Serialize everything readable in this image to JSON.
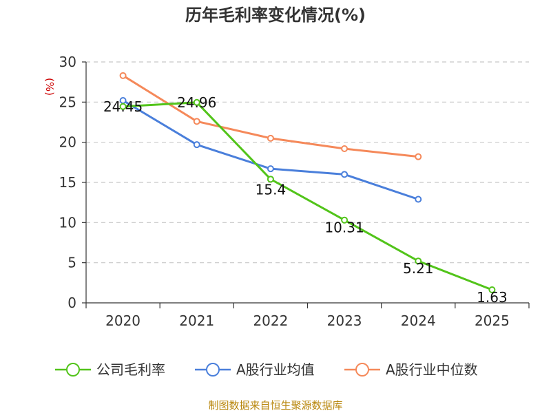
{
  "chart_data": {
    "type": "line",
    "title": "历年毛利率变化情况(%)",
    "ylabel": "(%)",
    "categories": [
      "2020",
      "2021",
      "2022",
      "2023",
      "2024",
      "2025"
    ],
    "ylim": [
      0,
      30
    ],
    "yticks": [
      0,
      5,
      10,
      15,
      20,
      25,
      30
    ],
    "grid": true,
    "legend_position": "bottom",
    "series": [
      {
        "name": "公司毛利率",
        "color": "#52c41a",
        "values": [
          24.45,
          24.96,
          15.4,
          10.31,
          5.21,
          1.63
        ],
        "data_labels": [
          "24.45",
          "24.96",
          "15.4",
          "10.31",
          "5.21",
          "1.63"
        ]
      },
      {
        "name": "A股行业均值",
        "color": "#4a7fdb",
        "values": [
          25.2,
          19.7,
          16.7,
          16.0,
          12.9,
          null
        ]
      },
      {
        "name": "A股行业中位数",
        "color": "#f5895a",
        "values": [
          28.3,
          22.6,
          20.5,
          19.2,
          18.2,
          null
        ]
      }
    ],
    "source": "制图数据来自恒生聚源数据库"
  }
}
